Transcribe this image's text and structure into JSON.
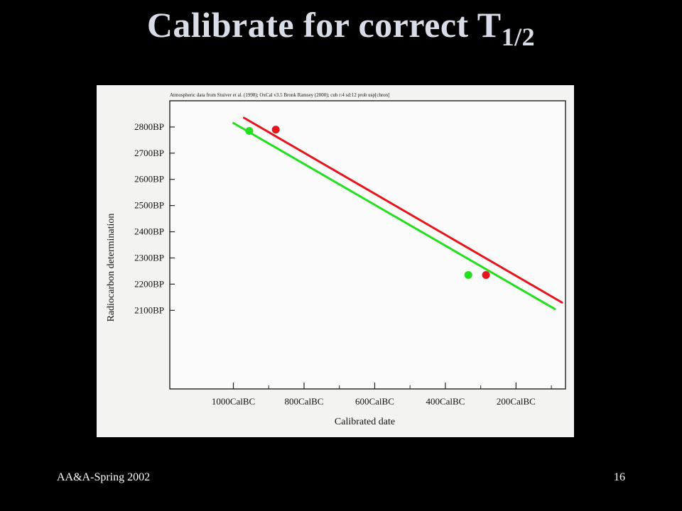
{
  "slide": {
    "title_main": "Calibrate for correct T",
    "title_subscript": "1/2",
    "footer_left": "AA&A-Spring 2002",
    "page_number": "16"
  },
  "colors": {
    "background": "#000000",
    "title": "#d8dde8",
    "photo_background": "#f3f3f1",
    "plot_background": "#fbfbfb",
    "red_series": "#e8141c",
    "green_series": "#22e01e"
  },
  "chart_data": {
    "type": "line",
    "header_note": "Atmospheric data from Stuiver et al. (1998); OxCal v3.5 Bronk Ramsey (2000); cub r:4 sd:12 prob usp[chron]",
    "xlabel": "Calibrated date",
    "ylabel": "Radiocarbon determination",
    "x_reversed": true,
    "xlim": [
      1180,
      60
    ],
    "ylim": [
      1800,
      2900
    ],
    "x_ticks": [
      1000,
      800,
      600,
      400,
      200
    ],
    "x_tick_labels": [
      "1000CalBC",
      "800CalBC",
      "600CalBC",
      "400CalBC",
      "200CalBC"
    ],
    "y_ticks": [
      2800,
      2700,
      2600,
      2500,
      2400,
      2300,
      2200,
      2100
    ],
    "y_tick_labels": [
      "2800BP",
      "2700BP",
      "2600BP",
      "2500BP",
      "2400BP",
      "2300BP",
      "2200BP",
      "2100BP"
    ],
    "grid": false,
    "series": [
      {
        "color": "#e8141c",
        "line": [
          [
            970,
            2835
          ],
          [
            70,
            2130
          ]
        ],
        "points": [
          [
            880,
            2790
          ],
          [
            285,
            2235
          ]
        ]
      },
      {
        "color": "#22e01e",
        "line": [
          [
            1000,
            2815
          ],
          [
            90,
            2105
          ]
        ],
        "points": [
          [
            955,
            2785
          ],
          [
            335,
            2235
          ]
        ]
      }
    ]
  }
}
